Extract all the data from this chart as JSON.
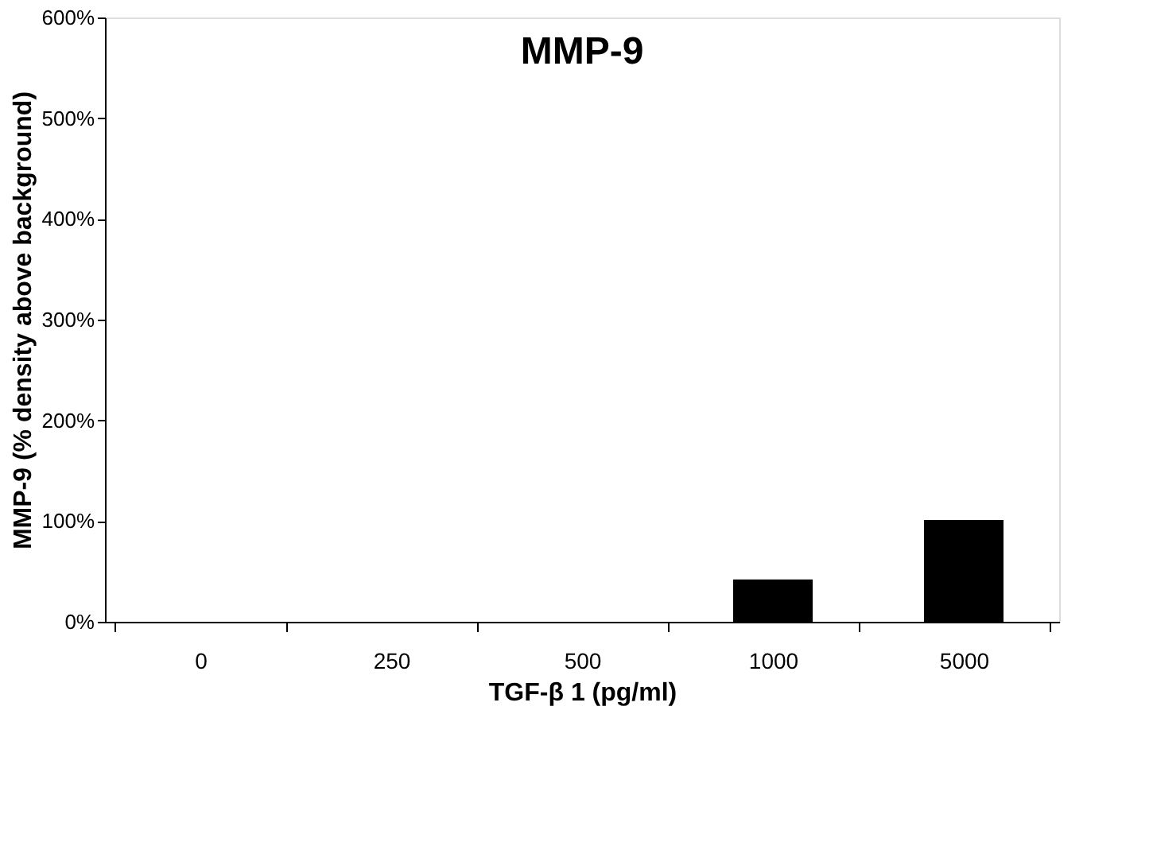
{
  "chart_data": {
    "type": "bar",
    "title": "MMP-9",
    "xlabel": "TGF-β 1 (pg/ml)",
    "ylabel": "MMP-9 (% density above background)",
    "categories": [
      "0",
      "250",
      "500",
      "1000",
      "5000"
    ],
    "series": [
      {
        "color": "#000000",
        "values": [
          0,
          0,
          0,
          42,
          101
        ]
      }
    ],
    "ylim": [
      0,
      600
    ],
    "yticks": [
      {
        "value": 0,
        "label": "0%"
      },
      {
        "value": 100,
        "label": "100%"
      },
      {
        "value": 200,
        "label": "200%"
      },
      {
        "value": 300,
        "label": "300%"
      },
      {
        "value": 400,
        "label": "400%"
      },
      {
        "value": 500,
        "label": "500%"
      },
      {
        "value": 600,
        "label": "600%"
      }
    ],
    "grid": false
  }
}
